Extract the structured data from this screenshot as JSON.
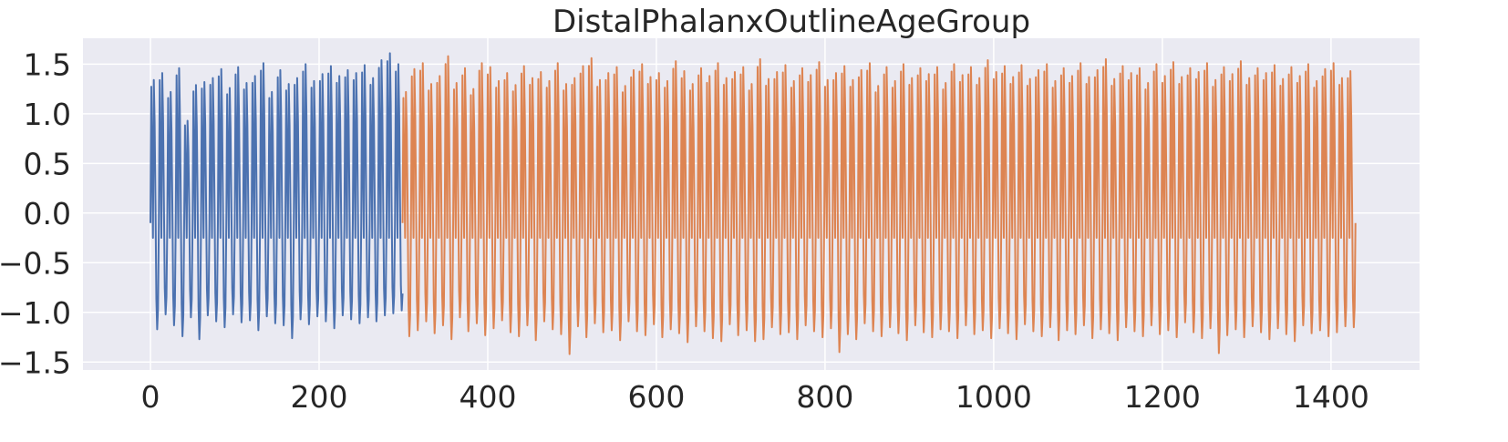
{
  "chart_data": {
    "type": "line",
    "title": "DistalPhalanxOutlineAgeGroup",
    "xlabel": "",
    "ylabel": "",
    "xlim": [
      -80,
      1505
    ],
    "ylim": [
      -1.58,
      1.76
    ],
    "xticks": [
      0,
      200,
      400,
      600,
      800,
      1000,
      1200,
      1400
    ],
    "xtick_labels": [
      "0",
      "200",
      "400",
      "600",
      "800",
      "1000",
      "1200",
      "1400"
    ],
    "yticks": [
      1.5,
      1.0,
      0.5,
      0.0,
      -0.5,
      -1.0,
      -1.5
    ],
    "ytick_labels": [
      "1.5",
      "1.0",
      "0.5",
      "0.0",
      "−0.5",
      "−1.0",
      "−1.5"
    ],
    "grid": true,
    "legend": "none",
    "background": "#eaeaf2",
    "period": 10,
    "waveform": [
      -0.1,
      1.33,
      0.55,
      -0.25,
      1.4,
      0.95,
      0.1,
      -0.85,
      -1.15,
      -0.95
    ],
    "series": [
      {
        "x_start": 0,
        "x_end": 299,
        "color": "#4c72b0",
        "peaks": [
          1.34,
          1.41,
          1.22,
          1.46,
          0.93,
          1.29,
          1.32,
          1.36,
          1.45,
          1.26,
          1.47,
          1.31,
          1.38,
          1.51,
          1.22,
          1.44,
          1.3,
          1.36,
          1.5,
          1.33,
          1.4,
          1.48,
          1.38,
          1.44,
          1.41,
          1.49,
          1.36,
          1.54,
          1.61,
          1.5
        ],
        "troughs": [
          -1.17,
          -1.02,
          -1.13,
          -1.24,
          -1.05,
          -1.27,
          -1.03,
          -1.09,
          -1.15,
          -1.02,
          -1.1,
          -1.08,
          -1.18,
          -1.04,
          -1.11,
          -1.13,
          -1.26,
          -1.07,
          -1.12,
          -1.04,
          -1.09,
          -1.16,
          -1.03,
          -1.07,
          -1.11,
          -1.05,
          -1.09,
          -1.03,
          -1.01,
          -0.98
        ]
      },
      {
        "x_start": 299,
        "x_end": 1429,
        "color": "#dd8452",
        "peaks": [
          1.22,
          1.45,
          1.51,
          1.3,
          1.38,
          1.58,
          1.31,
          1.46,
          1.25,
          1.51,
          1.47,
          1.33,
          1.41,
          1.29,
          1.48,
          1.36,
          1.42,
          1.33,
          1.51,
          1.3,
          1.36,
          1.48,
          1.56,
          1.34,
          1.41,
          1.47,
          1.28,
          1.44,
          1.5,
          1.37,
          1.41,
          1.33,
          1.53,
          1.43,
          1.3,
          1.46,
          1.38,
          1.51,
          1.36,
          1.42,
          1.47,
          1.3,
          1.55,
          1.35,
          1.42,
          1.49,
          1.33,
          1.46,
          1.39,
          1.52,
          1.34,
          1.41,
          1.48,
          1.34,
          1.44,
          1.51,
          1.28,
          1.47,
          1.33,
          1.5,
          1.36,
          1.46,
          1.4,
          1.47,
          1.31,
          1.5,
          1.39,
          1.47,
          1.36,
          1.54,
          1.42,
          1.48,
          1.37,
          1.49,
          1.35,
          1.44,
          1.5,
          1.33,
          1.46,
          1.38,
          1.51,
          1.37,
          1.44,
          1.55,
          1.35,
          1.48,
          1.41,
          1.46,
          1.31,
          1.5,
          1.38,
          1.52,
          1.37,
          1.46,
          1.42,
          1.51,
          1.34,
          1.47,
          1.4,
          1.53,
          1.36,
          1.46,
          1.41,
          1.49,
          1.35,
          1.47,
          1.38,
          1.5,
          1.33,
          1.45,
          1.51,
          1.36,
          1.43
        ],
        "troughs": [
          -1.24,
          -1.18,
          -1.09,
          -1.21,
          -1.13,
          -1.27,
          -1.05,
          -1.19,
          -1.11,
          -1.23,
          -1.16,
          -1.08,
          -1.2,
          -1.24,
          -1.13,
          -1.28,
          -1.09,
          -1.17,
          -1.22,
          -1.42,
          -1.14,
          -1.25,
          -1.11,
          -1.2,
          -1.18,
          -1.28,
          -1.09,
          -1.19,
          -1.23,
          -1.12,
          -1.25,
          -1.17,
          -1.21,
          -1.3,
          -1.14,
          -1.19,
          -1.26,
          -1.29,
          -1.12,
          -1.23,
          -1.18,
          -1.29,
          -1.27,
          -1.15,
          -1.22,
          -1.2,
          -1.27,
          -1.13,
          -1.19,
          -1.25,
          -1.16,
          -1.4,
          -1.22,
          -1.27,
          -1.11,
          -1.19,
          -1.24,
          -1.15,
          -1.21,
          -1.28,
          -1.13,
          -1.2,
          -1.25,
          -1.17,
          -1.19,
          -1.26,
          -1.13,
          -1.22,
          -1.18,
          -1.26,
          -1.16,
          -1.21,
          -1.27,
          -1.12,
          -1.19,
          -1.24,
          -1.15,
          -1.28,
          -1.18,
          -1.22,
          -1.13,
          -1.26,
          -1.17,
          -1.21,
          -1.28,
          -1.15,
          -1.19,
          -1.24,
          -1.13,
          -1.22,
          -1.18,
          -1.25,
          -1.1,
          -1.2,
          -1.26,
          -1.16,
          -1.41,
          -1.23,
          -1.17,
          -1.25,
          -1.14,
          -1.2,
          -1.27,
          -1.16,
          -1.22,
          -1.29,
          -1.13,
          -1.21,
          -1.18,
          -1.24,
          -1.2,
          -1.14,
          -1.15
        ]
      }
    ]
  }
}
